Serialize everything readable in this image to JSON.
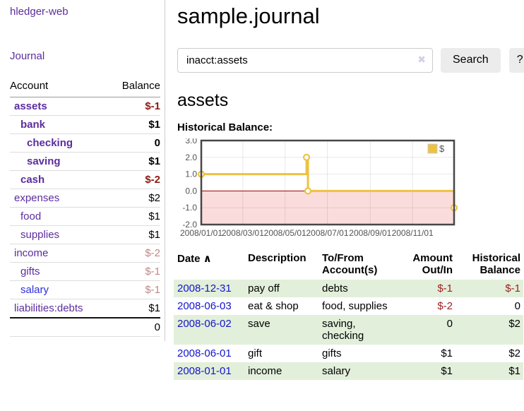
{
  "app": {
    "brand": "hledger-web",
    "nav_journal": "Journal"
  },
  "theme": {
    "link_purple": "#5b2d9e",
    "link_blue": "#2e2ee0",
    "date_blue": "#1414cc",
    "neg_strong": "#8c1b12",
    "neg_soft": "#c08787",
    "neg": "#9e2222",
    "row_green": "#e2efda",
    "accent_gold": "#edc240"
  },
  "sidebar": {
    "accounts_header": {
      "account": "Account",
      "balance": "Balance"
    },
    "accounts": [
      {
        "name": "assets",
        "depth": 1,
        "balance": "$-1",
        "bold": true
      },
      {
        "name": "bank",
        "depth": 2,
        "balance": "$1",
        "bold": true
      },
      {
        "name": "checking",
        "depth": 3,
        "balance": "0",
        "bold": true
      },
      {
        "name": "saving",
        "depth": 3,
        "balance": "$1",
        "bold": true
      },
      {
        "name": "cash",
        "depth": 2,
        "balance": "$-2",
        "bold": true
      },
      {
        "name": "expenses",
        "depth": 1,
        "balance": "$2"
      },
      {
        "name": "food",
        "depth": 2,
        "balance": "$1"
      },
      {
        "name": "supplies",
        "depth": 2,
        "balance": "$1"
      },
      {
        "name": "income",
        "depth": 1,
        "balance": "$-2"
      },
      {
        "name": "gifts",
        "depth": 2,
        "balance": "$-1"
      },
      {
        "name": "salary",
        "depth": 2,
        "balance": "$-1",
        "link_color": "blue"
      },
      {
        "name": "liabilities:debts",
        "depth": 1,
        "balance": "$1"
      }
    ],
    "total": "0"
  },
  "header": {
    "title": "sample.journal"
  },
  "search": {
    "value": "inacct:assets",
    "clear_icon": "✖",
    "button": "Search",
    "help_button": "?"
  },
  "account_page": {
    "title": "assets",
    "chart_label": "Historical Balance:"
  },
  "chart_data": {
    "type": "line",
    "title": "Historical Balance:",
    "series": [
      {
        "name": "$",
        "color": "#edc240",
        "step": "after",
        "points": [
          {
            "date": "2008-01-01",
            "day": 0,
            "value": 1
          },
          {
            "date": "2008-06-01",
            "day": 152,
            "value": 2
          },
          {
            "date": "2008-06-03",
            "day": 154,
            "value": 0
          },
          {
            "date": "2008-12-31",
            "day": 365,
            "value": -1
          }
        ]
      }
    ],
    "x_range_days": [
      0,
      365
    ],
    "x_ticks": [
      {
        "day": 0,
        "label": "2008/01/01"
      },
      {
        "day": 60,
        "label": "2008/03/01"
      },
      {
        "day": 121,
        "label": "2008/05/01"
      },
      {
        "day": 182,
        "label": "2008/07/01"
      },
      {
        "day": 244,
        "label": "2008/09/01"
      },
      {
        "day": 305,
        "label": "2008/11/01"
      }
    ],
    "ylim": [
      -2,
      3
    ],
    "y_ticks": [
      {
        "value": 3,
        "label": "3.0"
      },
      {
        "value": 2,
        "label": "2.0"
      },
      {
        "value": 1,
        "label": "1.0"
      },
      {
        "value": 0,
        "label": "0.0"
      },
      {
        "value": -1,
        "label": "-1.0"
      },
      {
        "value": -2,
        "label": "-2.0"
      }
    ],
    "legend": {
      "label": "$",
      "position": "top-right"
    },
    "grid": true,
    "negative_region_color": "#fbdcdc",
    "zero_line_color": "#990000"
  },
  "register": {
    "sort_icon": "∧",
    "columns": [
      {
        "key": "date",
        "label": "Date",
        "sortable": true
      },
      {
        "key": "description",
        "label": "Description"
      },
      {
        "key": "accounts",
        "label": "To/From\nAccount(s)"
      },
      {
        "key": "amount",
        "label": "Amount\nOut/In",
        "align": "right"
      },
      {
        "key": "balance",
        "label": "Historical\nBalance",
        "align": "right"
      }
    ],
    "rows": [
      {
        "date": "2008-12-31",
        "description": "pay off",
        "accounts": "debts",
        "amount": "$-1",
        "balance": "$-1"
      },
      {
        "date": "2008-06-03",
        "description": "eat & shop",
        "accounts": "food, supplies",
        "amount": "$-2",
        "balance": "0"
      },
      {
        "date": "2008-06-02",
        "description": "save",
        "accounts": "saving,\nchecking",
        "amount": "0",
        "balance": "$2"
      },
      {
        "date": "2008-06-01",
        "description": "gift",
        "accounts": "gifts",
        "amount": "$1",
        "balance": "$2"
      },
      {
        "date": "2008-01-01",
        "description": "income",
        "accounts": "salary",
        "amount": "$1",
        "balance": "$1"
      }
    ]
  }
}
